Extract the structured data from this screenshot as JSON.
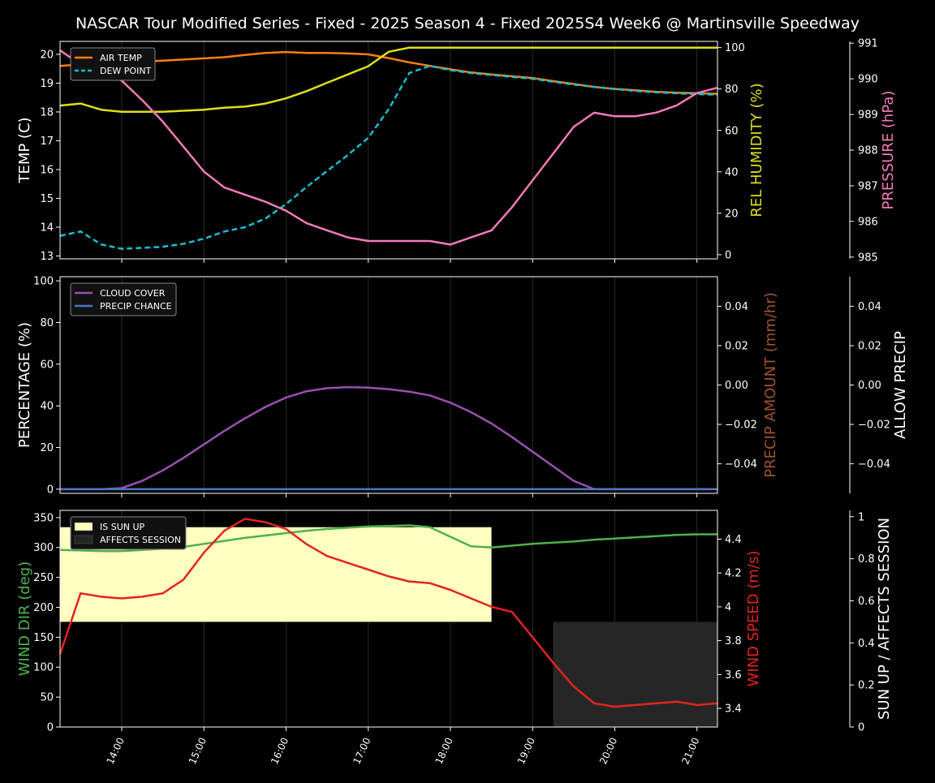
{
  "title": "NASCAR Tour Modified Series - Fixed - 2025 Season 4 - Fixed 2025S4 Week6 @ Martinsville Speedway",
  "x_tick_labels": [
    "14:00",
    "15:00",
    "16:00",
    "17:00",
    "18:00",
    "19:00",
    "20:00",
    "21:00"
  ],
  "chart_data": [
    {
      "type": "line",
      "title": "",
      "xlabel": "",
      "x_range": [
        "13:15",
        "21:15"
      ],
      "x": [
        "13:15",
        "13:30",
        "13:45",
        "14:00",
        "14:15",
        "14:30",
        "14:45",
        "15:00",
        "15:15",
        "15:30",
        "15:45",
        "16:00",
        "16:15",
        "16:30",
        "16:45",
        "17:00",
        "17:15",
        "17:30",
        "17:45",
        "18:00",
        "18:15",
        "18:30",
        "18:45",
        "19:00",
        "19:15",
        "19:30",
        "19:45",
        "20:00",
        "20:15",
        "20:30",
        "20:45",
        "21:00",
        "21:15"
      ],
      "axes": [
        {
          "side": "left",
          "label": "TEMP (C)",
          "range": [
            12.9,
            20.45
          ],
          "ticks": [
            13,
            14,
            15,
            16,
            17,
            18,
            19,
            20
          ],
          "color": "#ffffff"
        },
        {
          "side": "right",
          "label": "REL HUMIDITY (%)",
          "range": [
            -2,
            103
          ],
          "ticks": [
            0,
            20,
            40,
            60,
            80,
            100
          ],
          "color": "#dede1e"
        },
        {
          "side": "right-outer",
          "label": "PRESSURE (hPa)",
          "range": [
            984.95,
            991.05
          ],
          "ticks": [
            985,
            986,
            987,
            988,
            989,
            990,
            991
          ],
          "color": "#f17ab8"
        }
      ],
      "legend": {
        "placement": "top-left",
        "entries": [
          "AIR TEMP",
          "DEW POINT"
        ]
      },
      "series": [
        {
          "name": "AIR TEMP",
          "axis": 0,
          "color": "#ff7f0e",
          "style": "solid",
          "values": [
            19.6,
            19.65,
            19.7,
            19.72,
            19.75,
            19.78,
            19.82,
            19.86,
            19.9,
            19.98,
            20.05,
            20.08,
            20.05,
            20.05,
            20.03,
            20.0,
            19.87,
            19.72,
            19.6,
            19.48,
            19.37,
            19.3,
            19.24,
            19.18,
            19.07,
            18.97,
            18.87,
            18.8,
            18.75,
            18.7,
            18.67,
            18.65,
            18.63
          ]
        },
        {
          "name": "DEW POINT",
          "axis": 0,
          "color": "#17becf",
          "style": "dashed",
          "values": [
            13.7,
            13.85,
            13.4,
            13.25,
            13.28,
            13.32,
            13.42,
            13.6,
            13.85,
            14.0,
            14.3,
            14.8,
            15.4,
            15.95,
            16.5,
            17.1,
            18.1,
            19.35,
            19.6,
            19.45,
            19.35,
            19.28,
            19.22,
            19.15,
            19.05,
            18.95,
            18.87,
            18.8,
            18.73,
            18.68,
            18.65,
            18.62,
            18.6
          ]
        },
        {
          "name": "",
          "axis": 1,
          "color": "#dede1e",
          "style": "solid",
          "values": [
            72,
            73,
            70,
            69,
            69,
            69,
            69.5,
            70,
            71,
            71.5,
            73,
            75.5,
            79,
            83,
            87,
            91,
            98,
            100,
            100,
            100,
            100,
            100,
            100,
            100,
            100,
            100,
            100,
            100,
            100,
            100,
            100,
            100,
            100
          ]
        },
        {
          "name": "",
          "axis": 2,
          "color": "#f17ab8",
          "style": "solid",
          "values": [
            990.8,
            990.4,
            990.2,
            989.95,
            989.4,
            988.8,
            988.1,
            987.4,
            986.95,
            986.75,
            986.55,
            986.3,
            985.95,
            985.75,
            985.55,
            985.45,
            985.45,
            985.45,
            985.45,
            985.35,
            985.55,
            985.75,
            986.4,
            987.15,
            987.9,
            988.65,
            989.05,
            988.95,
            988.95,
            989.05,
            989.25,
            989.6,
            989.75
          ]
        }
      ]
    },
    {
      "type": "line",
      "title": "",
      "xlabel": "",
      "axes": [
        {
          "side": "left",
          "label": "PERCENTAGE (%)",
          "range": [
            -2,
            102
          ],
          "ticks": [
            0,
            20,
            40,
            60,
            80,
            100
          ],
          "color": "#ffffff"
        },
        {
          "side": "right",
          "label": "PRECIP AMOUNT (mm/hr)",
          "range": [
            -0.055,
            0.055
          ],
          "ticks": [
            -0.04,
            -0.02,
            0.0,
            0.02,
            0.04
          ],
          "tick_labels": [
            "−0.04",
            "−0.02",
            "0.00",
            "0.02",
            "0.04"
          ],
          "color": "#a0522d"
        },
        {
          "side": "right-outer",
          "label": "ALLOW PRECIP",
          "range": [
            -0.055,
            0.055
          ],
          "ticks": [
            -0.04,
            -0.02,
            0.0,
            0.02,
            0.04
          ],
          "tick_labels": [
            "−0.04",
            "−0.02",
            "0.00",
            "0.02",
            "0.04"
          ],
          "color": "#ffffff"
        }
      ],
      "legend": {
        "placement": "top-left",
        "entries": [
          "CLOUD COVER",
          "PRECIP CHANCE"
        ]
      },
      "series": [
        {
          "name": "CLOUD COVER",
          "axis": 0,
          "color": "#9b4fb0",
          "style": "solid",
          "values": [
            0,
            0,
            0,
            0.5,
            4,
            9,
            15,
            21.5,
            28,
            34,
            39.5,
            44,
            47,
            48.5,
            49,
            48.7,
            48,
            46.8,
            45,
            41.5,
            37,
            31.5,
            25,
            18,
            11,
            4,
            0,
            0,
            0,
            0,
            0,
            0,
            0
          ]
        },
        {
          "name": "PRECIP CHANCE",
          "axis": 0,
          "color": "#4a78c2",
          "style": "solid",
          "values": [
            0,
            0,
            0,
            0,
            0,
            0,
            0,
            0,
            0,
            0,
            0,
            0,
            0,
            0,
            0,
            0,
            0,
            0,
            0,
            0,
            0,
            0,
            0,
            0,
            0,
            0,
            0,
            0,
            0,
            0,
            0,
            0,
            0
          ]
        }
      ]
    },
    {
      "type": "line",
      "title": "",
      "xlabel": "",
      "axes": [
        {
          "side": "left",
          "label": "WIND DIR (deg)",
          "range": [
            0,
            362
          ],
          "ticks": [
            0,
            50,
            100,
            150,
            200,
            250,
            300,
            350
          ],
          "color": "#4cb24c"
        },
        {
          "side": "right",
          "label": "WIND SPEED (m/s)",
          "range": [
            3.29,
            4.57
          ],
          "ticks": [
            3.4,
            3.6,
            3.8,
            4.0,
            4.2,
            4.4
          ],
          "color": "#e3231f"
        },
        {
          "side": "right-outer",
          "label": "SUN UP / AFFECTS SESSION",
          "range": [
            0,
            1.03
          ],
          "ticks": [
            0.0,
            0.2,
            0.4,
            0.6,
            0.8,
            1.0
          ],
          "color": "#ffffff"
        }
      ],
      "legend": {
        "placement": "top-left",
        "entries": [
          "IS SUN UP",
          "AFFECTS SESSION"
        ]
      },
      "regions": [
        {
          "name": "IS SUN UP",
          "x_start": "13:15",
          "x_end": "18:30",
          "y_bottom": 0.5,
          "y_top": 0.95,
          "color": "#ffffc0"
        },
        {
          "name": "AFFECTS SESSION",
          "x_start": "19:15",
          "x_end": "21:15",
          "y_bottom": 0,
          "y_top": 0.5,
          "color": "#262626"
        }
      ],
      "series": [
        {
          "name": "",
          "axis": 0,
          "color": "#4cb24c",
          "style": "solid",
          "values": [
            296,
            295,
            294,
            294,
            296,
            298,
            301,
            306,
            311,
            316,
            320,
            324,
            328,
            331,
            333,
            335,
            336,
            337,
            334,
            318,
            302,
            300,
            303,
            306,
            308,
            310,
            313,
            315,
            317,
            319,
            321,
            322,
            322
          ]
        },
        {
          "name": "",
          "axis": 1,
          "color": "#e3231f",
          "style": "solid",
          "values": [
            3.72,
            4.08,
            4.06,
            4.05,
            4.06,
            4.08,
            4.16,
            4.32,
            4.45,
            4.52,
            4.5,
            4.46,
            4.37,
            4.3,
            4.26,
            4.22,
            4.18,
            4.15,
            4.14,
            4.1,
            4.05,
            4.0,
            3.97,
            3.82,
            3.67,
            3.53,
            3.43,
            3.41,
            3.42,
            3.43,
            3.44,
            3.42,
            3.43
          ]
        }
      ]
    }
  ]
}
